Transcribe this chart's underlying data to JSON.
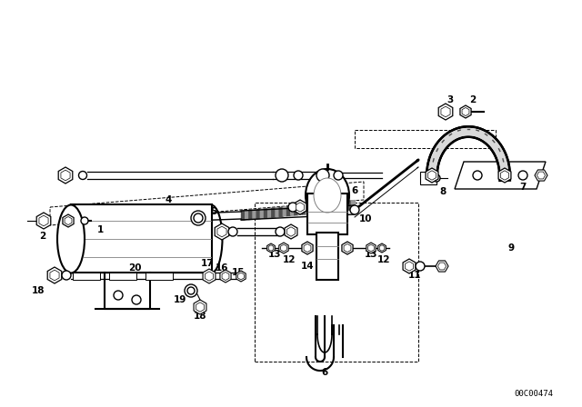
{
  "bg_color": "#ffffff",
  "line_color": "#000000",
  "gray_color": "#666666",
  "fig_width": 6.4,
  "fig_height": 4.48,
  "dpi": 100,
  "watermark": "00C00474"
}
